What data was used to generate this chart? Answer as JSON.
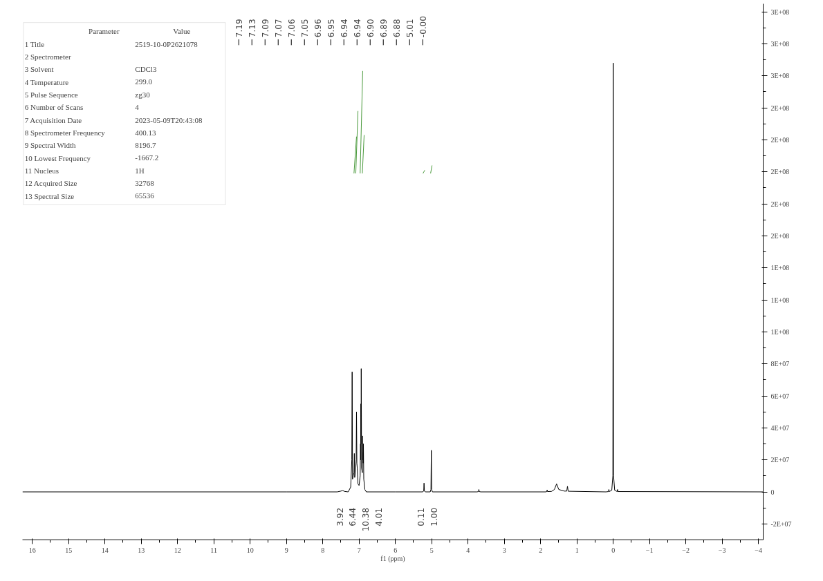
{
  "chart_data": {
    "type": "line",
    "xlabel": "f1 (ppm)",
    "xlim": [
      16.27,
      -4.13
    ],
    "xticks": [
      16,
      15,
      14,
      13,
      12,
      11,
      10,
      9,
      8,
      7,
      6,
      5,
      4,
      3,
      2,
      1,
      0,
      {
        "value": -1,
        "label": "−1"
      },
      {
        "value": -2,
        "label": "−2"
      },
      {
        "value": -3,
        "label": "−3"
      },
      {
        "value": -4,
        "label": "−4"
      }
    ],
    "ylim": [
      -30000000,
      305000000
    ],
    "yticks": [
      {
        "value": -20000000,
        "label": "-2E+07"
      },
      {
        "value": 0,
        "label": "0"
      },
      {
        "value": 20000000,
        "label": "2E+07"
      },
      {
        "value": 40000000,
        "label": "4E+07"
      },
      {
        "value": 60000000,
        "label": "6E+07"
      },
      {
        "value": 80000000,
        "label": "8E+07"
      },
      {
        "value": 100000000,
        "label": "1E+08"
      },
      {
        "value": 120000000,
        "label": "1E+08"
      },
      {
        "value": 140000000,
        "label": "1E+08"
      },
      {
        "value": 160000000,
        "label": "2E+08"
      },
      {
        "value": 180000000,
        "label": "2E+08"
      },
      {
        "value": 200000000,
        "label": "2E+08"
      },
      {
        "value": 220000000,
        "label": "2E+08"
      },
      {
        "value": 240000000,
        "label": "2E+08"
      },
      {
        "value": 260000000,
        "label": "3E+08"
      },
      {
        "value": 280000000,
        "label": "3E+08"
      },
      {
        "value": 300000000,
        "label": "3E+08"
      }
    ],
    "grid": false,
    "marker": "none",
    "line_style": "solid",
    "series": [
      {
        "color": "#000000",
        "x": [
          16.27,
          9.0,
          7.6,
          7.5,
          7.45,
          7.4,
          7.3,
          7.23,
          7.2,
          7.19,
          7.18,
          7.16,
          7.14,
          7.13,
          7.12,
          7.105,
          7.09,
          7.08,
          7.07,
          7.06,
          7.05,
          7.03,
          7.0,
          6.97,
          6.96,
          6.955,
          6.95,
          6.945,
          6.94,
          6.93,
          6.91,
          6.9,
          6.895,
          6.89,
          6.885,
          6.88,
          6.87,
          6.84,
          6.8,
          6.0,
          5.25,
          5.22,
          5.21,
          5.2,
          5.17,
          5.04,
          5.02,
          5.01,
          5.0,
          4.98,
          3.75,
          3.71,
          3.7,
          3.69,
          3.65,
          1.86,
          1.83,
          1.82,
          1.81,
          1.7,
          1.62,
          1.56,
          1.5,
          1.35,
          1.28,
          1.26,
          1.24,
          0.2,
          0.13,
          0.12,
          0.11,
          0.04,
          0.01,
          0.0,
          -0.01,
          -0.04,
          -0.11,
          -0.12,
          -0.13,
          -4.13
        ],
        "values": [
          0,
          0,
          0,
          500000,
          800000,
          300000,
          0,
          3000000,
          20000000,
          75000000,
          8000000,
          10000000,
          12000000,
          24000000,
          9000000,
          12000000,
          16000000,
          20000000,
          50000000,
          18000000,
          15000000,
          5000000,
          4000000,
          10000000,
          30000000,
          20000000,
          55000000,
          30000000,
          77000000,
          15000000,
          12000000,
          35000000,
          20000000,
          25000000,
          18000000,
          30000000,
          8000000,
          1500000,
          0,
          0,
          0,
          500000,
          5500000,
          500000,
          0,
          0,
          1500000,
          26000000,
          1500000,
          0,
          0,
          200000,
          1500000,
          200000,
          0,
          0,
          200000,
          1200000,
          200000,
          300000,
          1500000,
          5000000,
          1500000,
          500000,
          500000,
          3500000,
          400000,
          0,
          200000,
          1500000,
          200000,
          1000000,
          10000000,
          268000000,
          10000000,
          1000000,
          200000,
          1500000,
          200000,
          0
        ]
      },
      {
        "color": "#4a9a3c",
        "x": [
          7.14,
          7.07,
          null,
          7.09,
          7.03,
          null,
          6.97,
          6.9,
          null,
          6.91,
          6.86,
          null,
          5.24,
          5.19,
          null,
          5.03,
          4.99
        ],
        "values": [
          199000000,
          222000000,
          null,
          199000000,
          238000000,
          null,
          199000000,
          263000000,
          null,
          199000000,
          223000000,
          null,
          199000000,
          201000000,
          null,
          199000000,
          204000000
        ]
      }
    ],
    "annotations": [
      "7.19",
      "7.13",
      "7.09",
      "7.07",
      "7.06",
      "7.05",
      "6.96",
      "6.95",
      "6.94",
      "6.94",
      "6.90",
      "6.89",
      "6.88",
      "5.01",
      "-0.00",
      "3.92",
      "6.44",
      "10.38",
      "4.01",
      "0.11",
      "1.00",
      "Parameter\tValue",
      "1 Title\t2519-10-0P2621078",
      "2 Spectrometer\t",
      "3 Solvent\tCDCl3",
      "4 Temperature\t299.0",
      "5 Pulse Sequence\tzg30",
      "6 Number of Scans\t4",
      "7 Acquisition Date\t2023-05-09T20:43:08",
      "8 Spectrometer Frequency\t400.13",
      "9 Spectral Width\t8196.7",
      "10 Lowest Frequency\t-1667.2",
      "11 Nucleus\t1H",
      "12 Acquired Size\t32768",
      "13 Spectral Size\t65536"
    ]
  }
}
